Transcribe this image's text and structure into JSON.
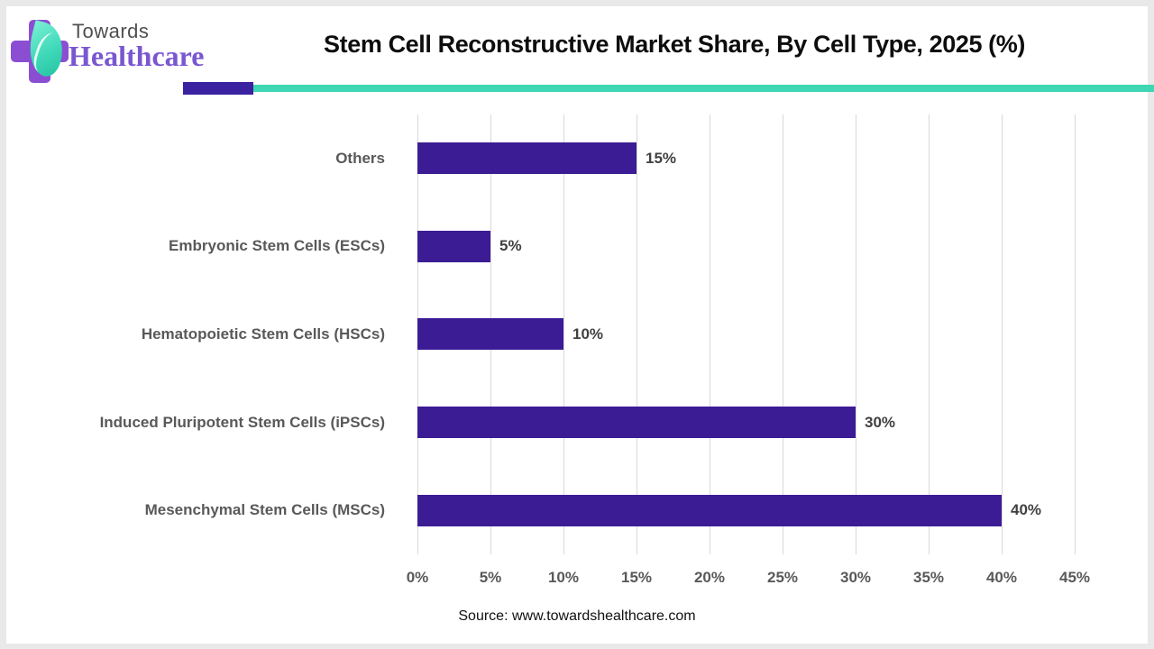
{
  "logo": {
    "towards": "Towards",
    "healthcare": "Healthcare"
  },
  "header": {
    "title": "Stem Cell Reconstructive Market Share, By Cell Type, 2025 (%)"
  },
  "chart_data": {
    "type": "bar",
    "orientation": "horizontal",
    "title": "Stem Cell Reconstructive Market Share, By Cell Type, 2025 (%)",
    "categories": [
      "Others",
      "Embryonic Stem Cells (ESCs)",
      "Hematopoietic Stem Cells (HSCs)",
      "Induced Pluripotent Stem Cells (iPSCs)",
      "Mesenchymal Stem Cells (MSCs)"
    ],
    "values": [
      15,
      5,
      10,
      30,
      40
    ],
    "value_labels": [
      "15%",
      "5%",
      "10%",
      "30%",
      "40%"
    ],
    "xlim": [
      0,
      45
    ],
    "x_ticks": [
      "0%",
      "5%",
      "10%",
      "15%",
      "20%",
      "25%",
      "30%",
      "35%",
      "40%",
      "45%"
    ],
    "grid": true,
    "legend": "none"
  },
  "footer": {
    "source": "Source: www.towardshealthcare.com"
  },
  "colors": {
    "bar": "#3C1C94",
    "accent_purple": "#3A22A0",
    "accent_teal": "#3FD6B3",
    "grid": "#D9D9D9",
    "label_gray": "#595959",
    "value_gray": "#404040",
    "logo_cross_purple": "#8B4ED2",
    "logo_text_purple": "#7A57D1",
    "logo_towards_gray": "#4F4F4F",
    "leaf_teal": "#3FD9B9"
  }
}
